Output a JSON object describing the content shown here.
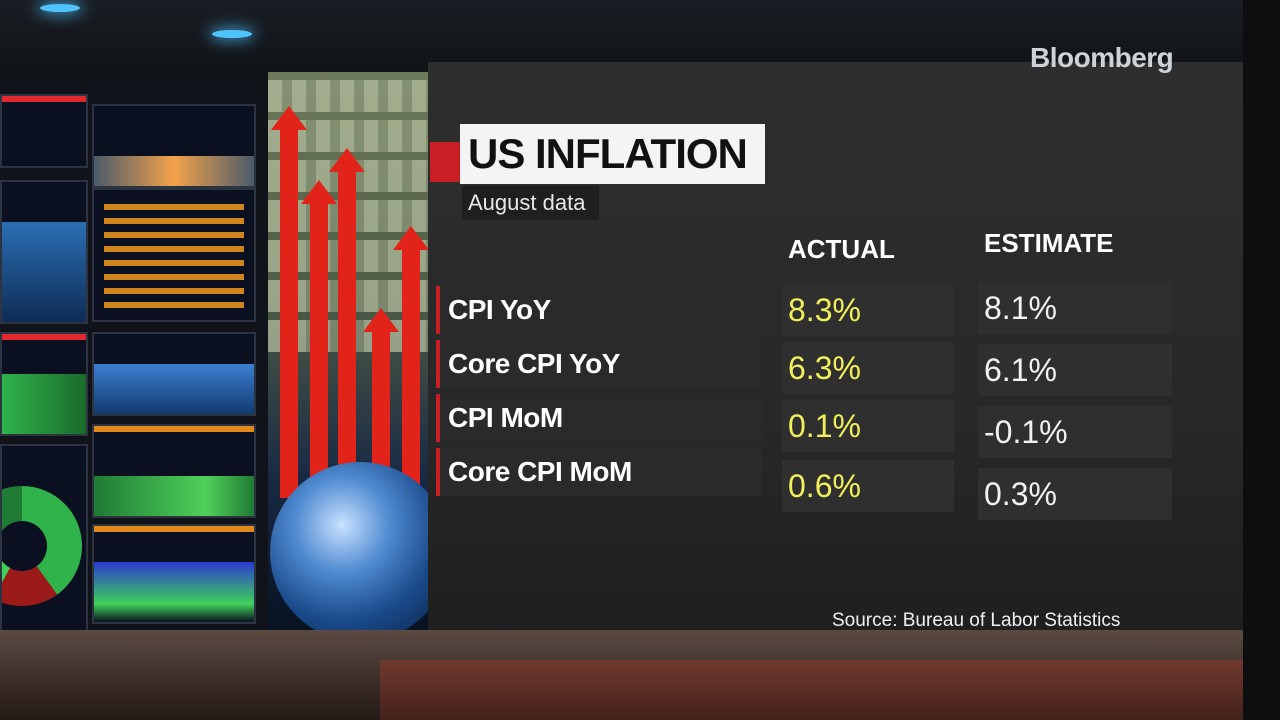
{
  "broadcaster": "Bloomberg",
  "graphic": {
    "title": "US INFLATION",
    "subtitle": "August data",
    "columns": [
      "ACTUAL",
      "ESTIMATE"
    ],
    "rows": [
      {
        "label": "CPI YoY",
        "actual": "8.3%",
        "estimate": "8.1%"
      },
      {
        "label": "Core CPI YoY",
        "actual": "6.3%",
        "estimate": "6.1%"
      },
      {
        "label": "CPI MoM",
        "actual": "0.1%",
        "estimate": "-0.1%"
      },
      {
        "label": "Core CPI MoM",
        "actual": "0.6%",
        "estimate": "0.3%"
      }
    ],
    "source": "Source: Bureau of Labor Statistics"
  },
  "colors": {
    "accent_red": "#c81e24",
    "actual_yellow": "#f1f05a",
    "estimate_white": "#f2f2f2",
    "screen_bg": "#2a2a2a"
  }
}
